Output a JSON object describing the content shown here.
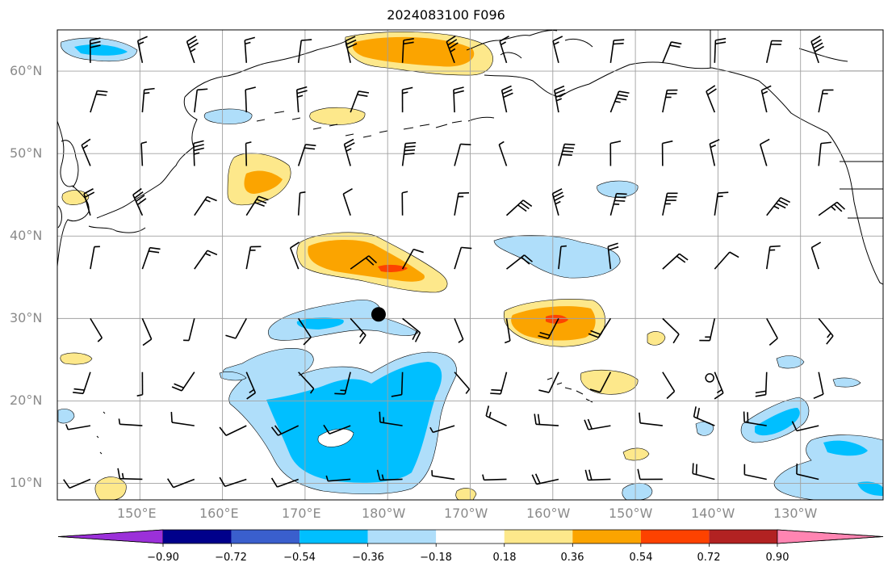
{
  "title": "2024083100 F096",
  "lat_labels": [
    "60°N",
    "50°N",
    "40°N",
    "30°N",
    "20°N",
    "10°N"
  ],
  "lon_labels": [
    "150°E",
    "160°E",
    "170°E",
    "180°W",
    "170°W",
    "160°W",
    "150°W",
    "140°W",
    "130°W"
  ],
  "colorbar": {
    "tick_labels": [
      "−0.90",
      "−0.72",
      "−0.54",
      "−0.36",
      "−0.18",
      "0.18",
      "0.36",
      "0.54",
      "0.72",
      "0.90"
    ],
    "colors": [
      "#9b30d9",
      "#00008b",
      "#3a5fcd",
      "#00bfff",
      "#afdefa",
      "#ffffff",
      "#fde88b",
      "#fba400",
      "#fd4200",
      "#b22222",
      "#ff85b2"
    ]
  },
  "map": {
    "extent": {
      "lon_min": 140,
      "lon_max": 240,
      "lat_min": 8,
      "lat_max": 65
    },
    "grid_lons": [
      150,
      160,
      170,
      180,
      190,
      200,
      210,
      220,
      230
    ],
    "grid_lats": [
      10,
      20,
      30,
      40,
      50,
      60
    ],
    "center_marker": {
      "lon": 178.9,
      "lat": 30.5
    },
    "open_circle_marker": {
      "lon": 219,
      "lat": 22.8
    }
  }
}
